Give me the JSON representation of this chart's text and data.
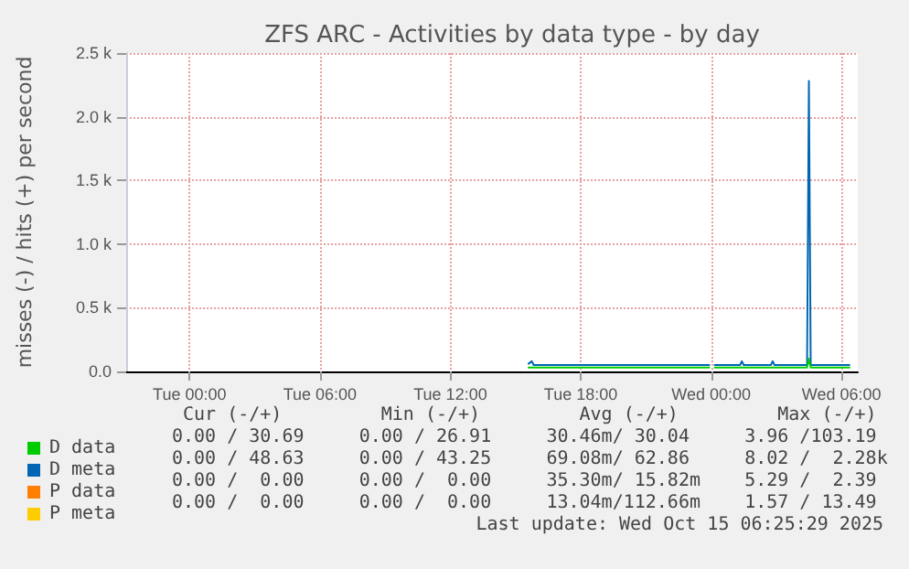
{
  "chart_data": {
    "type": "line",
    "title": "ZFS ARC - Activities by data type - by day",
    "ylabel": "misses (-) / hits (+) per second",
    "xlim": [
      "2025-10-13T21:05",
      "2025-10-15T06:45"
    ],
    "xticks": [
      {
        "value": "2025-10-14T00:00",
        "label": "Tue 00:00"
      },
      {
        "value": "2025-10-14T06:00",
        "label": "Tue 06:00"
      },
      {
        "value": "2025-10-14T12:00",
        "label": "Tue 12:00"
      },
      {
        "value": "2025-10-14T18:00",
        "label": "Tue 18:00"
      },
      {
        "value": "2025-10-15T00:00",
        "label": "Wed 00:00"
      },
      {
        "value": "2025-10-15T06:00",
        "label": "Wed 06:00"
      }
    ],
    "ylim": [
      0,
      2500
    ],
    "yticks": [
      {
        "value": 0,
        "label": "0.0"
      },
      {
        "value": 500,
        "label": "0.5 k"
      },
      {
        "value": 1000,
        "label": "1.0 k"
      },
      {
        "value": 1500,
        "label": "1.5 k"
      },
      {
        "value": 2000,
        "label": "2.0 k"
      },
      {
        "value": 2500,
        "label": "2.5 k"
      }
    ],
    "grid": true,
    "marker": "none",
    "line_style": "solid",
    "legend": "bottom left",
    "series": [
      {
        "name": "D data",
        "color": "#00cc00",
        "x": [
          "2025-10-14T15:36",
          "2025-10-14T23:55",
          "2025-10-15T00:02",
          "2025-10-15T00:10",
          "2025-10-15T04:25",
          "2025-10-15T04:30",
          "2025-10-15T04:35",
          "2025-10-15T06:22"
        ],
        "values": [
          30,
          30,
          null,
          30,
          30,
          100,
          30,
          30
        ]
      },
      {
        "name": "D meta",
        "color": "#0066b3",
        "x": [
          "2025-10-14T15:36",
          "2025-10-14T15:45",
          "2025-10-14T15:50",
          "2025-10-14T23:55",
          "2025-10-15T00:02",
          "2025-10-15T00:10",
          "2025-10-15T01:20",
          "2025-10-15T01:25",
          "2025-10-15T01:30",
          "2025-10-15T02:45",
          "2025-10-15T02:50",
          "2025-10-15T02:55",
          "2025-10-15T04:25",
          "2025-10-15T04:30",
          "2025-10-15T04:35",
          "2025-10-15T06:22"
        ],
        "values": [
          60,
          80,
          50,
          50,
          null,
          50,
          50,
          80,
          50,
          50,
          80,
          50,
          50,
          2280,
          50,
          50
        ]
      },
      {
        "name": "P data",
        "color": "#ff8000"
      },
      {
        "name": "P meta",
        "color": "#ffcc00"
      }
    ],
    "annotations": [
      " Cur (-/+)         Min (-/+)         Avg (-/+)         Max (-/+)",
      "0.00 / 30.69     0.00 / 26.91     30.46m/ 30.04     3.96 /103.19",
      "0.00 / 48.63     0.00 / 43.25     69.08m/ 62.86     8.02 /  2.28k",
      "0.00 /  0.00     0.00 /  0.00     35.30m/ 15.82m    5.29 /  2.39",
      "0.00 /  0.00     0.00 /  0.00     13.04m/112.66m    1.57 / 13.49",
      "Last update: Wed Oct 15 06:25:29 2025"
    ]
  }
}
